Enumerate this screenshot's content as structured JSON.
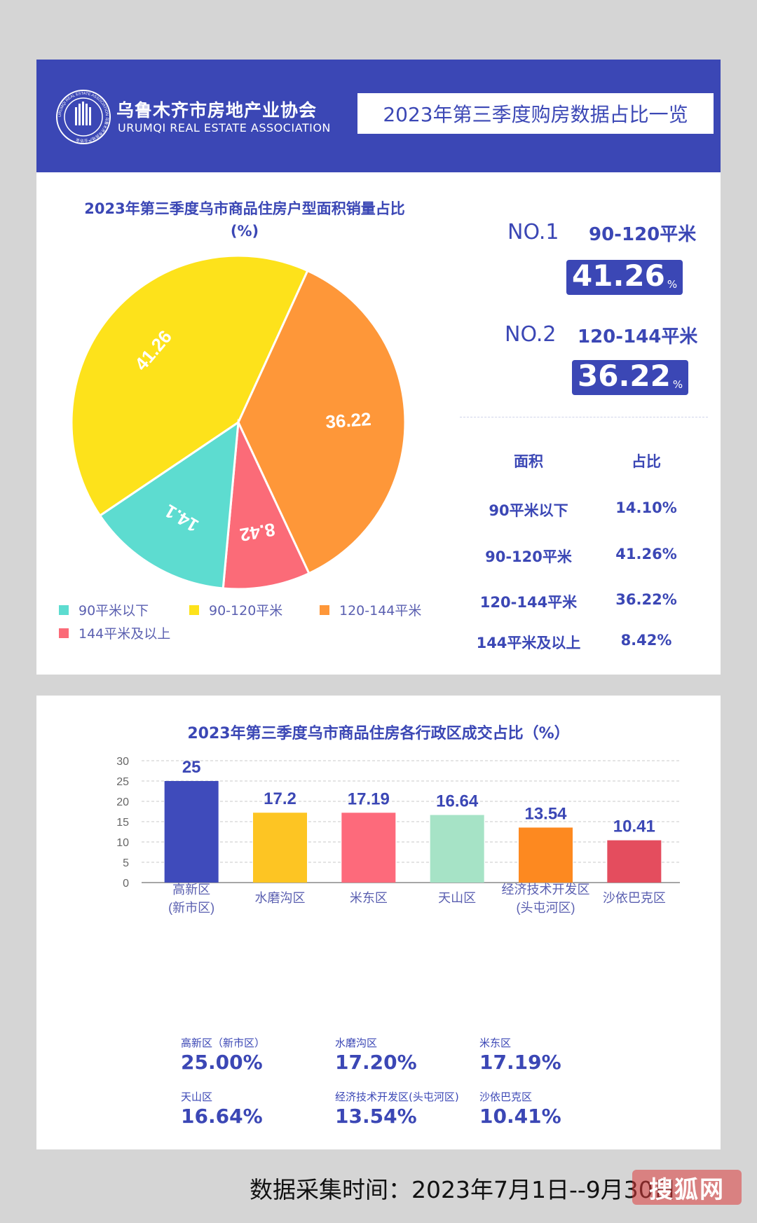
{
  "header": {
    "assoc_name_cn": "乌鲁木齐市房地产业协会",
    "assoc_name_en": "URUMQI REAL ESTATE ASSOCIATION",
    "title": "2023年第三季度购房数据占比一览",
    "logo_ring_text": "URUMQI REAL ESTATE ASSOCIATION 乌鲁木齐市房地产业协会"
  },
  "pie_section": {
    "title_line1": "2023年第三季度乌市商品住房户型面积销量占比",
    "title_line2": "(%)",
    "rank1": {
      "no": "NO.1",
      "label": "90-120平米",
      "value": "41.26",
      "unit": "%"
    },
    "rank2": {
      "no": "NO.2",
      "label": "120-144平米",
      "value": "36.22",
      "unit": "%"
    },
    "table": {
      "headers": [
        "面积",
        "占比"
      ],
      "rows": [
        [
          "90平米以下",
          "14.10%"
        ],
        [
          "90-120平米",
          "41.26%"
        ],
        [
          "120-144平米",
          "36.22%"
        ],
        [
          "144平米及以上",
          "8.42%"
        ]
      ]
    }
  },
  "bar_section": {
    "title": "2023年第三季度乌市商品住房各行政区成交占比（%）",
    "summary": [
      {
        "name": "高新区（新市区）",
        "value": "25.00%"
      },
      {
        "name": "水磨沟区",
        "value": "17.20%"
      },
      {
        "name": "米东区",
        "value": "17.19%"
      },
      {
        "name": "天山区",
        "value": "16.64%"
      },
      {
        "name": "经济技术开发区(头屯河区)",
        "value": "13.54%"
      },
      {
        "name": "沙依巴克区",
        "value": "10.41%"
      }
    ]
  },
  "chart_data": [
    {
      "type": "pie",
      "title": "2023年第三季度乌市商品住房户型面积销量占比(%)",
      "slices": [
        {
          "label": "90平米以下",
          "value": 14.1,
          "color": "#5ddcd0"
        },
        {
          "label": "90-120平米",
          "value": 41.26,
          "color": "#fde21b"
        },
        {
          "label": "120-144平米",
          "value": 36.22,
          "color": "#fe9739"
        },
        {
          "label": "144平米及以上",
          "value": 8.42,
          "color": "#fb6b78"
        }
      ],
      "data_labels": [
        "14.1",
        "41.26",
        "36.22",
        "8.42"
      ],
      "legend": [
        "90平米以下",
        "90-120平米",
        "120-144平米",
        "144平米及以上"
      ],
      "legend_position": "bottom"
    },
    {
      "type": "bar",
      "title": "2023年第三季度乌市商品住房各行政区成交占比（%）",
      "categories": [
        "高新区\n(新市区)",
        "水磨沟区",
        "米东区",
        "天山区",
        "经济技术开发区\n(头屯河区)",
        "沙依巴克区"
      ],
      "values": [
        25,
        17.2,
        17.19,
        16.64,
        13.54,
        10.41
      ],
      "data_labels": [
        "25",
        "17.2",
        "17.19",
        "16.64",
        "13.54",
        "10.41"
      ],
      "colors": [
        "#3f4bbb",
        "#fdc523",
        "#fd6a7b",
        "#a6e3c6",
        "#fd8920",
        "#e44d5e"
      ],
      "ylim": [
        0,
        30
      ],
      "yticks": [
        "0",
        "5",
        "10",
        "15",
        "20",
        "25",
        "30"
      ],
      "grid": true
    }
  ],
  "footer": {
    "text": "数据采集时间：2023年7月1日--9月30日",
    "watermark": "搜狐网"
  }
}
